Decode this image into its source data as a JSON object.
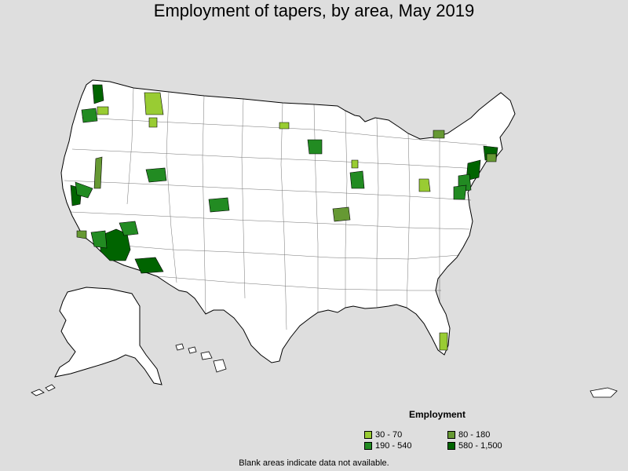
{
  "title": "Employment of tapers, by area, May 2019",
  "legend": {
    "title": "Employment",
    "items": [
      {
        "label": "30 - 70",
        "color": "#99cc33"
      },
      {
        "label": "80 - 180",
        "color": "#669933"
      },
      {
        "label": "190 - 540",
        "color": "#228b22"
      },
      {
        "label": "580 - 1,500",
        "color": "#006400"
      }
    ]
  },
  "footnote": "Blank areas indicate data not available.",
  "map_colors": {
    "background": "#dedede",
    "land": "#ffffff",
    "border": "#000000"
  }
}
